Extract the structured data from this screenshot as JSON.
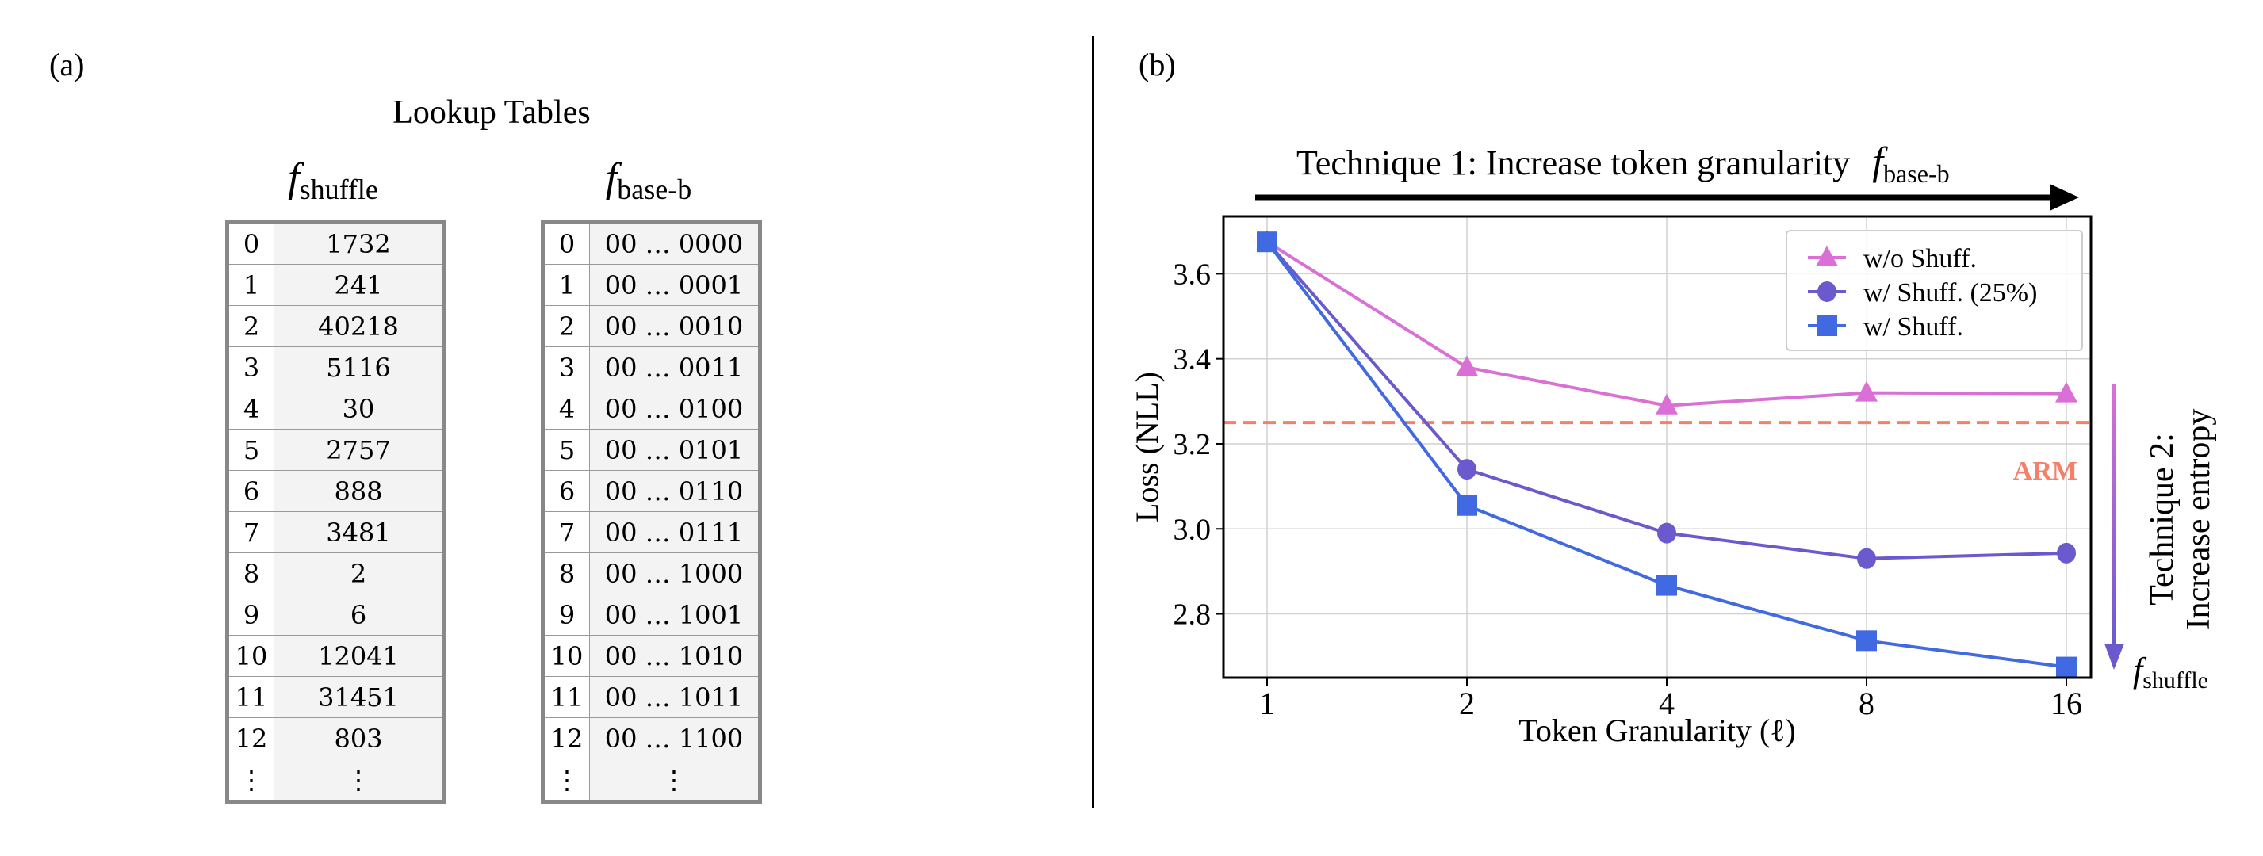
{
  "panel_a": {
    "label": "(a)",
    "title": "Lookup Tables",
    "table_shuffle": {
      "name_f": "f",
      "name_sub": "shuffle",
      "rows": [
        [
          "0",
          "1732"
        ],
        [
          "1",
          "241"
        ],
        [
          "2",
          "40218"
        ],
        [
          "3",
          "5116"
        ],
        [
          "4",
          "30"
        ],
        [
          "5",
          "2757"
        ],
        [
          "6",
          "888"
        ],
        [
          "7",
          "3481"
        ],
        [
          "8",
          "2"
        ],
        [
          "9",
          "6"
        ],
        [
          "10",
          "12041"
        ],
        [
          "11",
          "31451"
        ],
        [
          "12",
          "803"
        ],
        [
          "⋮",
          "⋮"
        ]
      ]
    },
    "table_base": {
      "name_f": "f",
      "name_sub": "base-b",
      "rows": [
        [
          "0",
          "00 … 0000"
        ],
        [
          "1",
          "00 … 0001"
        ],
        [
          "2",
          "00 … 0010"
        ],
        [
          "3",
          "00 … 0011"
        ],
        [
          "4",
          "00 … 0100"
        ],
        [
          "5",
          "00 … 0101"
        ],
        [
          "6",
          "00 … 0110"
        ],
        [
          "7",
          "00 … 0111"
        ],
        [
          "8",
          "00 … 1000"
        ],
        [
          "9",
          "00 … 1001"
        ],
        [
          "10",
          "00 … 1010"
        ],
        [
          "11",
          "00 … 1011"
        ],
        [
          "12",
          "00 … 1100"
        ],
        [
          "⋮",
          "⋮"
        ]
      ]
    }
  },
  "panel_b": {
    "label": "(b)",
    "technique1": "Technique 1: Increase token granularity",
    "technique1_f": "f",
    "technique1_sub": "base-b",
    "technique2_line1": "Technique 2:",
    "technique2_line2": "Increase entropy",
    "technique2_f": "f",
    "technique2_sub": "shuffle",
    "arrow2_colors": [
      "#DA70D6",
      "#6A5ACD"
    ]
  },
  "chart_data": {
    "type": "line",
    "xlabel": "Token Granularity (ℓ)",
    "ylabel": "Loss (NLL)",
    "x": [
      1,
      2,
      4,
      8,
      16
    ],
    "x_scale": "log2",
    "x_tick_labels": [
      "1",
      "2",
      "4",
      "8",
      "16"
    ],
    "y_ticks": [
      2.8,
      3.0,
      3.2,
      3.4,
      3.6
    ],
    "y_tick_labels": [
      "2.8",
      "3.0",
      "3.2",
      "3.4",
      "3.6"
    ],
    "ylim": [
      2.65,
      3.735
    ],
    "grid": true,
    "legend_position": "top-right",
    "series": [
      {
        "name": "w/o Shuff.",
        "values": [
          3.675,
          3.38,
          3.29,
          3.32,
          3.318
        ],
        "color": "#DA70D6",
        "marker": "triangle"
      },
      {
        "name": "w/ Shuff. (25%)",
        "values": [
          3.675,
          3.14,
          2.99,
          2.93,
          2.943
        ],
        "color": "#6A5ACD",
        "marker": "circle"
      },
      {
        "name": "w/ Shuff.",
        "values": [
          3.675,
          3.055,
          2.867,
          2.737,
          2.675
        ],
        "color": "#4169E1",
        "marker": "square"
      }
    ],
    "reference_line": {
      "label": "ARM",
      "value": 3.25,
      "color": "#F4806A",
      "style": "dashed"
    }
  }
}
